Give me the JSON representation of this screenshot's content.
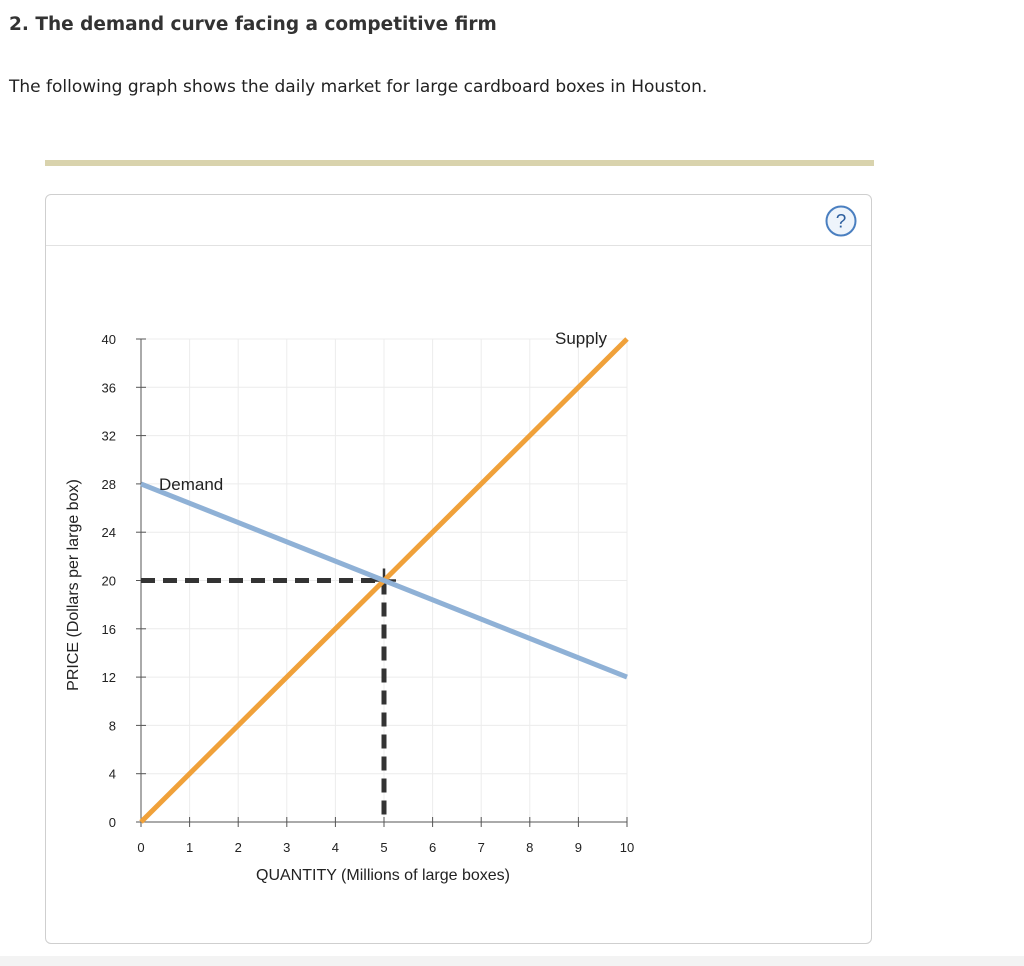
{
  "question": {
    "title": "2. The demand curve facing a competitive firm",
    "text": "The following graph shows the daily market for large cardboard boxes in Houston."
  },
  "help_icon": "question-mark-icon",
  "colors": {
    "supply": "#f0a13a",
    "demand": "#8fb1d6",
    "guide": "#333333",
    "grid": "#ececec",
    "divider": "#d9d3ad",
    "help": "#4a7fc0"
  },
  "chart_data": {
    "type": "line",
    "xlabel": "QUANTITY (Millions of large boxes)",
    "ylabel": "PRICE (Dollars per large box)",
    "xlim": [
      0,
      10
    ],
    "ylim": [
      0,
      40
    ],
    "x_ticks": [
      0,
      1,
      2,
      3,
      4,
      5,
      6,
      7,
      8,
      9,
      10
    ],
    "y_ticks": [
      0,
      4,
      8,
      12,
      16,
      20,
      24,
      28,
      32,
      36,
      40
    ],
    "grid": true,
    "series": [
      {
        "name": "Supply",
        "points": [
          [
            0,
            0
          ],
          [
            10,
            40
          ]
        ]
      },
      {
        "name": "Demand",
        "points": [
          [
            0,
            28
          ],
          [
            10,
            12
          ]
        ]
      }
    ],
    "equilibrium": {
      "quantity": 5,
      "price": 20
    }
  }
}
